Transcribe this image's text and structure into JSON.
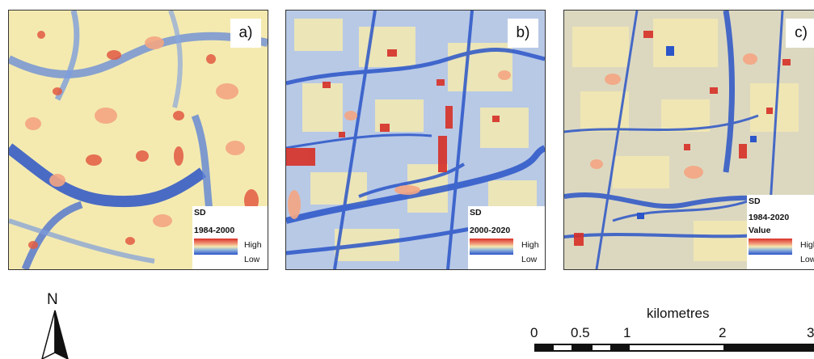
{
  "panels": [
    {
      "id": "a",
      "label": "a)",
      "legend": {
        "title": "SD",
        "period": "1984-2000",
        "value_label": "",
        "high_label": "High",
        "low_label": "Low"
      }
    },
    {
      "id": "b",
      "label": "b)",
      "legend": {
        "title": "SD",
        "period": "2000-2020",
        "value_label": "",
        "high_label": "High",
        "low_label": "Low"
      }
    },
    {
      "id": "c",
      "label": "c)",
      "legend": {
        "title": "SD",
        "period": "1984-2020",
        "value_label": "Value",
        "high_label": "High",
        "low_label": "Low"
      }
    }
  ],
  "colors": {
    "high": "#d73027",
    "mid_high": "#f4a582",
    "mid": "#f4eab0",
    "mid_low": "#92b4dc",
    "low": "#2b55c8"
  },
  "north_arrow": {
    "label": "N",
    "icon": "north-arrow-icon"
  },
  "scale_bar": {
    "title": "kilometres",
    "ticks": [
      "0",
      "0.5",
      "1",
      "2",
      "3"
    ]
  }
}
